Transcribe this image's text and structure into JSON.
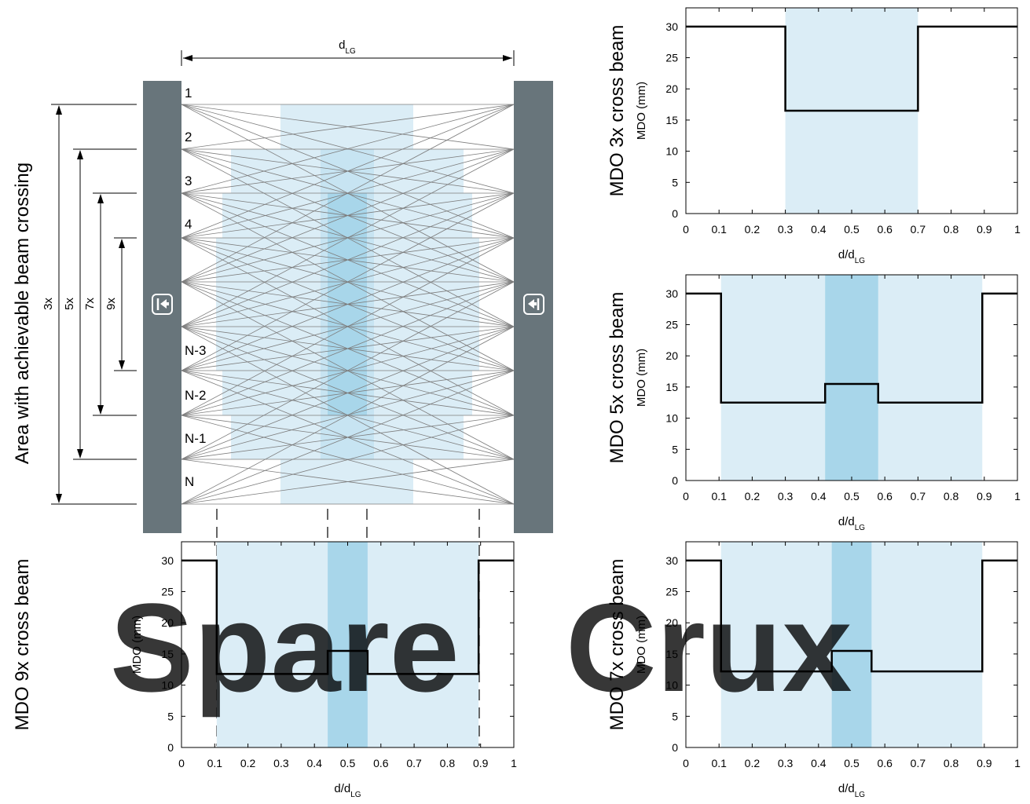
{
  "diagram": {
    "side_title": "Area with achievable beam crossing",
    "distance_label": {
      "main": "d",
      "sub": "LG"
    },
    "beam_labels": [
      "1",
      "2",
      "3",
      "4",
      "",
      "",
      "N-3",
      "N-2",
      "N-1",
      "N"
    ],
    "crossing_dims": [
      "3x",
      "5x",
      "7x",
      "9x"
    ],
    "sender_icon": "sender-arrow-icon",
    "receiver_icon": "receiver-arrow-icon",
    "colors": {
      "device": "#68757b",
      "zone_light": "#dbedf6",
      "zone_mid": "#c7e4f2",
      "zone_dark": "#a8d6ea",
      "beam": "#7d7d7d"
    }
  },
  "watermark": {
    "part1": "Spare",
    "part2": "Crux",
    "color1": "#e8595c",
    "color2": "#7a7a7a"
  },
  "chart_data": [
    {
      "id": "mdo-3x",
      "type": "line",
      "title": "MDO 3x cross beam",
      "xlabel": "d/d",
      "xlabel_sub": "LG",
      "ylabel": "MDO (mm)",
      "xlim": [
        0,
        1
      ],
      "ylim": [
        0,
        33
      ],
      "xticks": [
        "0",
        "0.1",
        "0.2",
        "0.3",
        "0.4",
        "0.5",
        "0.6",
        "0.7",
        "0.8",
        "0.9",
        "1"
      ],
      "yticks": [
        "0",
        "5",
        "10",
        "15",
        "20",
        "25",
        "30"
      ],
      "x": [
        0,
        0.3,
        0.3,
        0.7,
        0.7,
        1.0
      ],
      "y": [
        30,
        30,
        16.5,
        16.5,
        30,
        30
      ],
      "bands": [
        {
          "x0": 0.3,
          "x1": 0.7,
          "shade": "light"
        }
      ]
    },
    {
      "id": "mdo-5x",
      "type": "line",
      "title": "MDO 5x cross beam",
      "xlabel": "d/d",
      "xlabel_sub": "LG",
      "ylabel": "MDO (mm)",
      "xlim": [
        0,
        1
      ],
      "ylim": [
        0,
        33
      ],
      "xticks": [
        "0",
        "0.1",
        "0.2",
        "0.3",
        "0.4",
        "0.5",
        "0.6",
        "0.7",
        "0.8",
        "0.9",
        "1"
      ],
      "yticks": [
        "0",
        "5",
        "10",
        "15",
        "20",
        "25",
        "30"
      ],
      "x": [
        0,
        0.106,
        0.106,
        0.42,
        0.42,
        0.58,
        0.58,
        0.894,
        0.894,
        1.0
      ],
      "y": [
        30,
        30,
        12.5,
        12.5,
        15.5,
        15.5,
        12.5,
        12.5,
        30,
        30
      ],
      "bands": [
        {
          "x0": 0.106,
          "x1": 0.894,
          "shade": "light"
        },
        {
          "x0": 0.42,
          "x1": 0.58,
          "shade": "dark"
        }
      ]
    },
    {
      "id": "mdo-7x",
      "type": "line",
      "title": "MDO 7x cross beam",
      "xlabel": "d/d",
      "xlabel_sub": "LG",
      "ylabel": "MDO (mm)",
      "xlim": [
        0,
        1
      ],
      "ylim": [
        0,
        33
      ],
      "xticks": [
        "0",
        "0.1",
        "0.2",
        "0.3",
        "0.4",
        "0.5",
        "0.6",
        "0.7",
        "0.8",
        "0.9",
        "1"
      ],
      "yticks": [
        "0",
        "5",
        "10",
        "15",
        "20",
        "25",
        "30"
      ],
      "x": [
        0,
        0.106,
        0.106,
        0.44,
        0.44,
        0.56,
        0.56,
        0.894,
        0.894,
        1.0
      ],
      "y": [
        30,
        30,
        12.2,
        12.2,
        15.5,
        15.5,
        12.2,
        12.2,
        30,
        30
      ],
      "bands": [
        {
          "x0": 0.106,
          "x1": 0.894,
          "shade": "light"
        },
        {
          "x0": 0.44,
          "x1": 0.56,
          "shade": "dark"
        }
      ]
    },
    {
      "id": "mdo-9x",
      "type": "line",
      "title": "MDO 9x cross beam",
      "xlabel": "d/d",
      "xlabel_sub": "LG",
      "ylabel": "MDO (mm)",
      "xlim": [
        0,
        1
      ],
      "ylim": [
        0,
        33
      ],
      "xticks": [
        "0",
        "0.1",
        "0.2",
        "0.3",
        "0.4",
        "0.5",
        "0.6",
        "0.7",
        "0.8",
        "0.9",
        "1"
      ],
      "yticks": [
        "0",
        "5",
        "10",
        "15",
        "20",
        "25",
        "30"
      ],
      "x": [
        0,
        0.106,
        0.106,
        0.44,
        0.44,
        0.56,
        0.56,
        0.894,
        0.894,
        1.0
      ],
      "y": [
        30,
        30,
        11.8,
        11.8,
        15.5,
        15.5,
        11.8,
        11.8,
        30,
        30
      ],
      "bands": [
        {
          "x0": 0.106,
          "x1": 0.894,
          "shade": "light"
        },
        {
          "x0": 0.44,
          "x1": 0.56,
          "shade": "dark"
        }
      ]
    }
  ]
}
